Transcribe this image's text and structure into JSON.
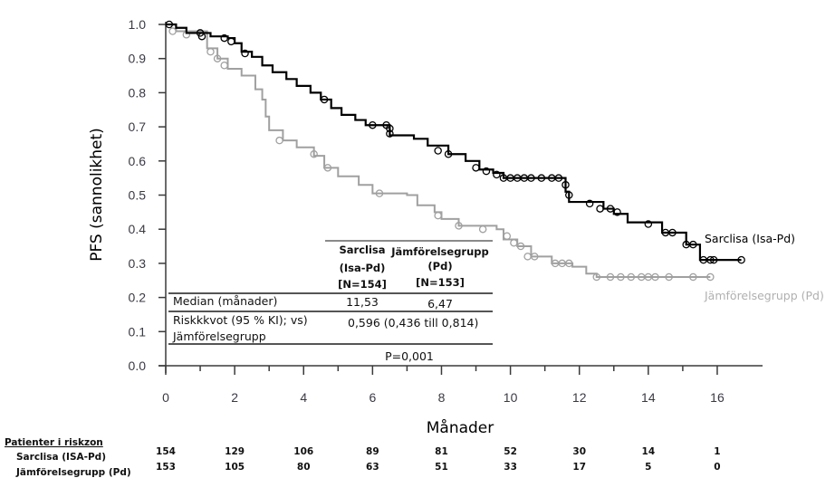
{
  "chart_data": {
    "type": "line",
    "subtype": "kaplan-meier step",
    "title": "",
    "xlabel": "Månader",
    "ylabel": "PFS (sannolikhet)",
    "xlim": [
      0,
      17
    ],
    "ylim": [
      0,
      1.0
    ],
    "x_ticks": [
      0,
      2,
      4,
      6,
      8,
      10,
      12,
      14,
      16
    ],
    "x_tick_labels": [
      "0",
      "2",
      "4",
      "6",
      "8",
      "10",
      "12",
      "14",
      "16"
    ],
    "y_ticks": [
      0.0,
      0.1,
      0.2,
      0.3,
      0.4,
      0.5,
      0.6,
      0.7,
      0.8,
      0.9,
      1.0
    ],
    "y_tick_labels": [
      "0.0",
      "0.1",
      "0.2",
      "0.3",
      "0.4",
      "0.5",
      "0.6",
      "0.7",
      "0.8",
      "0.9",
      "1.0"
    ],
    "grid": false,
    "series": [
      {
        "name": "Sarclisa (Isa-Pd)",
        "color": "#000000",
        "label_color": "#000000",
        "steps": [
          [
            0,
            1.0
          ],
          [
            0.3,
            0.99
          ],
          [
            0.6,
            0.975
          ],
          [
            1.3,
            0.965
          ],
          [
            1.8,
            0.96
          ],
          [
            2.0,
            0.945
          ],
          [
            2.2,
            0.92
          ],
          [
            2.5,
            0.905
          ],
          [
            2.8,
            0.88
          ],
          [
            3.1,
            0.86
          ],
          [
            3.5,
            0.84
          ],
          [
            3.8,
            0.82
          ],
          [
            4.2,
            0.8
          ],
          [
            4.5,
            0.78
          ],
          [
            4.8,
            0.755
          ],
          [
            5.1,
            0.735
          ],
          [
            5.5,
            0.72
          ],
          [
            5.8,
            0.705
          ],
          [
            6.5,
            0.675
          ],
          [
            7.2,
            0.665
          ],
          [
            7.6,
            0.645
          ],
          [
            8.2,
            0.62
          ],
          [
            8.7,
            0.6
          ],
          [
            9.1,
            0.575
          ],
          [
            9.5,
            0.565
          ],
          [
            9.8,
            0.55
          ],
          [
            11.6,
            0.51
          ],
          [
            11.7,
            0.48
          ],
          [
            12.7,
            0.46
          ],
          [
            13.0,
            0.445
          ],
          [
            13.4,
            0.42
          ],
          [
            14.4,
            0.39
          ],
          [
            15.1,
            0.355
          ],
          [
            15.5,
            0.31
          ],
          [
            16.7,
            0.31
          ]
        ],
        "censored": [
          [
            0.1,
            1.0
          ],
          [
            1.0,
            0.975
          ],
          [
            1.05,
            0.965
          ],
          [
            1.7,
            0.96
          ],
          [
            1.9,
            0.95
          ],
          [
            2.3,
            0.915
          ],
          [
            4.6,
            0.78
          ],
          [
            6.0,
            0.705
          ],
          [
            6.4,
            0.705
          ],
          [
            6.5,
            0.695
          ],
          [
            6.5,
            0.68
          ],
          [
            7.9,
            0.63
          ],
          [
            8.2,
            0.62
          ],
          [
            9.0,
            0.58
          ],
          [
            9.3,
            0.57
          ],
          [
            9.6,
            0.56
          ],
          [
            9.8,
            0.55
          ],
          [
            10.0,
            0.55
          ],
          [
            10.2,
            0.55
          ],
          [
            10.4,
            0.55
          ],
          [
            10.6,
            0.55
          ],
          [
            10.9,
            0.55
          ],
          [
            11.2,
            0.55
          ],
          [
            11.4,
            0.55
          ],
          [
            11.6,
            0.53
          ],
          [
            11.7,
            0.5
          ],
          [
            12.3,
            0.475
          ],
          [
            12.6,
            0.46
          ],
          [
            12.9,
            0.46
          ],
          [
            13.1,
            0.45
          ],
          [
            14.0,
            0.415
          ],
          [
            14.5,
            0.39
          ],
          [
            14.7,
            0.39
          ],
          [
            15.1,
            0.355
          ],
          [
            15.3,
            0.355
          ],
          [
            15.6,
            0.31
          ],
          [
            15.8,
            0.31
          ],
          [
            15.9,
            0.31
          ],
          [
            16.7,
            0.31
          ]
        ]
      },
      {
        "name": "Jämförelsegrupp (Pd)",
        "color": "#a0a0a0",
        "label_color": "#b0b0b0",
        "steps": [
          [
            0,
            1.0
          ],
          [
            0.3,
            0.98
          ],
          [
            1.2,
            0.93
          ],
          [
            1.5,
            0.9
          ],
          [
            1.8,
            0.87
          ],
          [
            2.2,
            0.85
          ],
          [
            2.6,
            0.81
          ],
          [
            2.8,
            0.78
          ],
          [
            2.9,
            0.73
          ],
          [
            3.0,
            0.69
          ],
          [
            3.4,
            0.66
          ],
          [
            3.8,
            0.64
          ],
          [
            4.3,
            0.615
          ],
          [
            4.6,
            0.58
          ],
          [
            5.0,
            0.555
          ],
          [
            5.6,
            0.53
          ],
          [
            6.0,
            0.505
          ],
          [
            7.0,
            0.5
          ],
          [
            7.3,
            0.47
          ],
          [
            7.8,
            0.45
          ],
          [
            8.0,
            0.43
          ],
          [
            8.5,
            0.41
          ],
          [
            9.6,
            0.4
          ],
          [
            9.8,
            0.37
          ],
          [
            10.2,
            0.35
          ],
          [
            10.6,
            0.32
          ],
          [
            11.2,
            0.3
          ],
          [
            11.8,
            0.29
          ],
          [
            12.2,
            0.27
          ],
          [
            12.5,
            0.26
          ],
          [
            15.8,
            0.26
          ]
        ],
        "censored": [
          [
            0.2,
            0.98
          ],
          [
            0.6,
            0.97
          ],
          [
            1.3,
            0.92
          ],
          [
            1.5,
            0.9
          ],
          [
            1.7,
            0.88
          ],
          [
            3.3,
            0.66
          ],
          [
            4.3,
            0.62
          ],
          [
            4.7,
            0.58
          ],
          [
            6.2,
            0.505
          ],
          [
            7.9,
            0.44
          ],
          [
            8.5,
            0.41
          ],
          [
            9.2,
            0.4
          ],
          [
            9.9,
            0.38
          ],
          [
            10.1,
            0.36
          ],
          [
            10.3,
            0.35
          ],
          [
            10.5,
            0.32
          ],
          [
            10.7,
            0.32
          ],
          [
            11.3,
            0.3
          ],
          [
            11.5,
            0.3
          ],
          [
            11.7,
            0.3
          ],
          [
            12.5,
            0.26
          ],
          [
            12.9,
            0.26
          ],
          [
            13.2,
            0.26
          ],
          [
            13.5,
            0.26
          ],
          [
            13.8,
            0.26
          ],
          [
            14.0,
            0.26
          ],
          [
            14.2,
            0.26
          ],
          [
            14.6,
            0.26
          ],
          [
            15.3,
            0.26
          ],
          [
            15.8,
            0.26
          ]
        ]
      }
    ],
    "legend": {
      "placement": "right",
      "entries": [
        "Sarclisa (Isa-Pd)",
        "Jämförelsegrupp (Pd)"
      ]
    },
    "annotation_table": {
      "columns": [
        "",
        "Sarclisa (Isa-Pd) [N=154]",
        "Jämförelsegrupp (Pd) [N=153]"
      ],
      "header": {
        "col1": [
          "Sarclisa",
          "(Isa-Pd)",
          "[N=154]"
        ],
        "col2": [
          "Jämförelsegrupp",
          "(Pd)",
          "[N=153]"
        ]
      },
      "rows": [
        {
          "label": "Median  (månader)",
          "sarclisa": "11,53",
          "comparator": "6,47"
        },
        {
          "label_line1": "Riskkkvot (95 % KI); vs)",
          "label_line2": "Jämförelsegrupp",
          "value": "0,596  (0,436 till 0,814)"
        }
      ],
      "p_value": "P=0,001"
    },
    "risk_table": {
      "title": "Patienter i riskzon",
      "time_points": [
        0,
        2,
        4,
        6,
        8,
        10,
        12,
        14,
        16
      ],
      "rows": [
        {
          "label": "Sarclisa (ISA-Pd)",
          "values": [
            "154",
            "129",
            "106",
            "89",
            "81",
            "52",
            "30",
            "14",
            "1"
          ]
        },
        {
          "label": "Jämförelsegrupp (Pd)",
          "values": [
            "153",
            "105",
            "80",
            "63",
            "51",
            "33",
            "17",
            "5",
            "0"
          ]
        }
      ]
    }
  }
}
